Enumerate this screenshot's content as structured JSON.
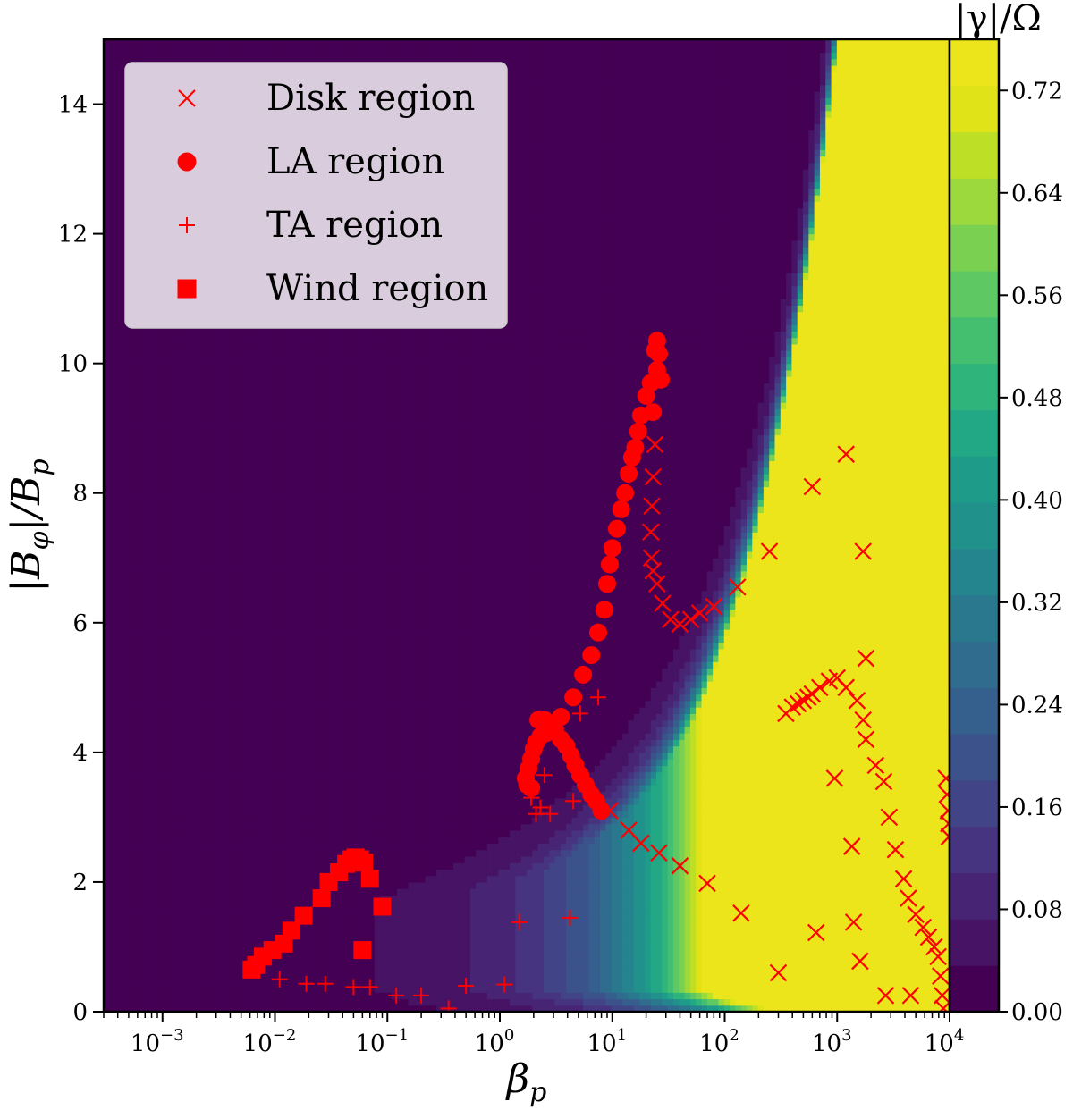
{
  "chart_data": {
    "type": "heatmap",
    "title": "",
    "xlabel": "β_p",
    "ylabel": "|B_φ|/B_p",
    "xscale": "log",
    "xlim": [
      0.0003,
      10000
    ],
    "ylim": [
      0,
      15
    ],
    "x_ticks": [
      {
        "value": 0.001,
        "base": "10",
        "exp": "−3"
      },
      {
        "value": 0.01,
        "base": "10",
        "exp": "−2"
      },
      {
        "value": 0.1,
        "base": "10",
        "exp": "−1"
      },
      {
        "value": 1,
        "base": "10",
        "exp": "0"
      },
      {
        "value": 10,
        "base": "10",
        "exp": "1"
      },
      {
        "value": 100,
        "base": "10",
        "exp": "2"
      },
      {
        "value": 1000,
        "base": "10",
        "exp": "3"
      },
      {
        "value": 10000,
        "base": "10",
        "exp": "4"
      }
    ],
    "y_ticks": [
      "0",
      "2",
      "4",
      "6",
      "8",
      "10",
      "12",
      "14"
    ],
    "colorbar": {
      "label": "|γ|/Ω",
      "min": 0.0,
      "max": 0.76,
      "ticks": [
        "0.00",
        "0.08",
        "0.16",
        "0.24",
        "0.32",
        "0.40",
        "0.48",
        "0.56",
        "0.64",
        "0.72"
      ],
      "colors": [
        "#440154",
        "#471365",
        "#482475",
        "#463480",
        "#414487",
        "#3b528b",
        "#355f8d",
        "#2f6c8e",
        "#2a788e",
        "#25858e",
        "#21918c",
        "#1e9c89",
        "#22a884",
        "#2fb47c",
        "#44bf70",
        "#5ec962",
        "#7ad151",
        "#9bd93c",
        "#bddf26",
        "#dfe318",
        "#ece51b"
      ]
    },
    "legend": {
      "placement": "upper-left",
      "entries": [
        "Disk region",
        "LA region",
        "TA region",
        "Wind region"
      ]
    },
    "series": [
      {
        "name": "Disk region",
        "marker": "x",
        "color": "#ff0000",
        "points": [
          [
            9.5,
            3.1
          ],
          [
            14,
            2.8
          ],
          [
            18,
            2.6
          ],
          [
            26,
            2.45
          ],
          [
            40,
            2.25
          ],
          [
            70,
            1.98
          ],
          [
            140,
            1.52
          ],
          [
            300,
            0.6
          ],
          [
            350,
            4.6
          ],
          [
            400,
            4.7
          ],
          [
            450,
            4.75
          ],
          [
            500,
            4.8
          ],
          [
            550,
            4.85
          ],
          [
            600,
            4.9
          ],
          [
            700,
            5.0
          ],
          [
            850,
            5.1
          ],
          [
            1000,
            5.15
          ],
          [
            1200,
            5.0
          ],
          [
            1500,
            4.8
          ],
          [
            1700,
            4.5
          ],
          [
            1800,
            4.2
          ],
          [
            2200,
            3.8
          ],
          [
            2600,
            3.55
          ],
          [
            2900,
            3.0
          ],
          [
            3300,
            2.5
          ],
          [
            3900,
            2.05
          ],
          [
            4300,
            1.75
          ],
          [
            5000,
            1.5
          ],
          [
            5800,
            1.3
          ],
          [
            6500,
            1.15
          ],
          [
            7300,
            1.0
          ],
          [
            7900,
            0.85
          ],
          [
            8300,
            0.55
          ],
          [
            8600,
            0.25
          ],
          [
            8800,
            0.05
          ],
          [
            9300,
            3.6
          ],
          [
            9500,
            3.35
          ],
          [
            9700,
            3.1
          ],
          [
            9800,
            2.9
          ],
          [
            9900,
            2.7
          ],
          [
            24,
            8.75
          ],
          [
            23,
            8.25
          ],
          [
            22.5,
            7.8
          ],
          [
            22,
            7.4
          ],
          [
            22.3,
            7.0
          ],
          [
            23,
            6.8
          ],
          [
            25,
            6.6
          ],
          [
            28,
            6.3
          ],
          [
            33,
            6.05
          ],
          [
            40,
            5.98
          ],
          [
            50,
            6.05
          ],
          [
            60,
            6.15
          ],
          [
            80,
            6.25
          ],
          [
            130,
            6.55
          ],
          [
            250,
            7.1
          ],
          [
            600,
            8.1
          ],
          [
            1200,
            8.6
          ],
          [
            1700,
            7.1
          ],
          [
            1800,
            5.45
          ],
          [
            1350,
            2.55
          ],
          [
            1400,
            1.38
          ],
          [
            1600,
            0.78
          ],
          [
            650,
            1.22
          ],
          [
            2700,
            0.25
          ],
          [
            4500,
            0.25
          ],
          [
            950,
            3.6
          ]
        ]
      },
      {
        "name": "LA region",
        "marker": "o",
        "color": "#ff0000",
        "points": [
          [
            23,
            9.25
          ],
          [
            24,
            10.2
          ],
          [
            25,
            10.35
          ],
          [
            26,
            10.15
          ],
          [
            27,
            9.75
          ],
          [
            25,
            9.9
          ],
          [
            22,
            9.7
          ],
          [
            20,
            9.5
          ],
          [
            18,
            9.2
          ],
          [
            17,
            8.95
          ],
          [
            16,
            8.7
          ],
          [
            15,
            8.55
          ],
          [
            14,
            8.3
          ],
          [
            13,
            8.0
          ],
          [
            12,
            7.75
          ],
          [
            11,
            7.45
          ],
          [
            10,
            7.15
          ],
          [
            9.5,
            6.9
          ],
          [
            9,
            6.6
          ],
          [
            8.5,
            6.2
          ],
          [
            7.5,
            5.85
          ],
          [
            6.5,
            5.5
          ],
          [
            5.5,
            5.2
          ],
          [
            4.5,
            4.85
          ],
          [
            3.5,
            4.55
          ],
          [
            3.0,
            4.4
          ],
          [
            2.6,
            4.3
          ],
          [
            2.3,
            4.25
          ],
          [
            2.1,
            4.15
          ],
          [
            2.0,
            4.05
          ],
          [
            1.9,
            3.9
          ],
          [
            1.8,
            3.75
          ],
          [
            1.7,
            3.6
          ],
          [
            1.75,
            3.5
          ],
          [
            1.9,
            3.45
          ],
          [
            2.2,
            4.5
          ],
          [
            2.5,
            4.5
          ],
          [
            2.8,
            4.45
          ],
          [
            3.1,
            4.35
          ],
          [
            3.5,
            4.2
          ],
          [
            3.9,
            4.1
          ],
          [
            4.3,
            3.95
          ],
          [
            4.7,
            3.8
          ],
          [
            5.2,
            3.65
          ],
          [
            5.8,
            3.5
          ],
          [
            6.5,
            3.35
          ],
          [
            7.2,
            3.25
          ],
          [
            8.0,
            3.1
          ]
        ]
      },
      {
        "name": "TA region",
        "marker": "+",
        "color": "#ff0000",
        "points": [
          [
            0.011,
            0.5
          ],
          [
            0.019,
            0.43
          ],
          [
            0.028,
            0.43
          ],
          [
            0.05,
            0.38
          ],
          [
            0.07,
            0.38
          ],
          [
            0.12,
            0.25
          ],
          [
            0.2,
            0.25
          ],
          [
            0.35,
            0.05
          ],
          [
            0.5,
            0.4
          ],
          [
            1.1,
            0.42
          ],
          [
            1.5,
            1.38
          ],
          [
            4.2,
            1.45
          ],
          [
            1.9,
            3.3
          ],
          [
            2.1,
            3.05
          ],
          [
            2.3,
            3.15
          ],
          [
            2.5,
            3.65
          ],
          [
            2.8,
            3.05
          ],
          [
            4.5,
            3.25
          ],
          [
            5.2,
            4.6
          ],
          [
            7.5,
            4.85
          ]
        ]
      },
      {
        "name": "Wind region",
        "marker": "s",
        "color": "#ff0000",
        "points": [
          [
            0.0062,
            0.65
          ],
          [
            0.0068,
            0.72
          ],
          [
            0.0078,
            0.85
          ],
          [
            0.0095,
            0.95
          ],
          [
            0.012,
            1.05
          ],
          [
            0.014,
            1.25
          ],
          [
            0.018,
            1.48
          ],
          [
            0.026,
            1.75
          ],
          [
            0.03,
            2.0
          ],
          [
            0.037,
            2.15
          ],
          [
            0.043,
            2.28
          ],
          [
            0.048,
            2.35
          ],
          [
            0.052,
            2.38
          ],
          [
            0.057,
            2.35
          ],
          [
            0.062,
            2.3
          ],
          [
            0.07,
            2.05
          ],
          [
            0.09,
            1.62
          ],
          [
            0.06,
            0.95
          ]
        ]
      }
    ]
  }
}
